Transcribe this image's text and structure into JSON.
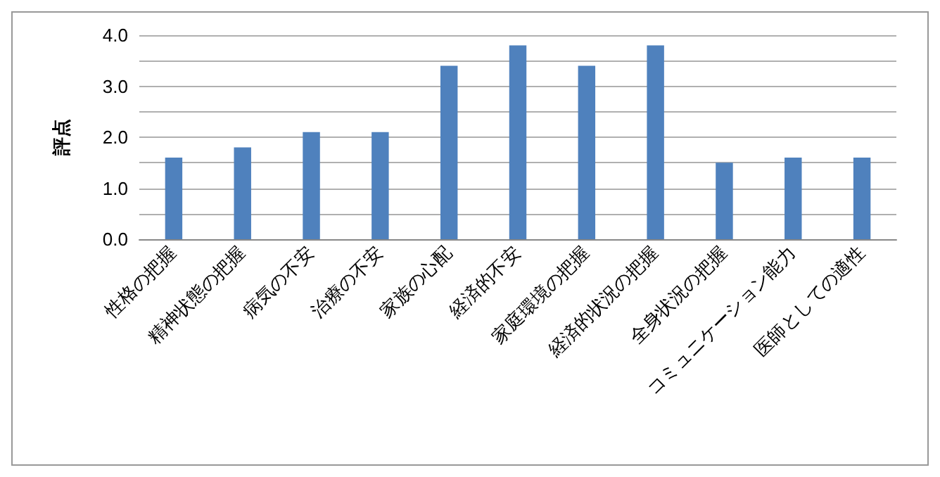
{
  "chart_data": {
    "type": "bar",
    "ylabel": "評点",
    "categories": [
      "性格の把握",
      "精神状態の把握",
      "病気の不安",
      "治療の不安",
      "家族の心配",
      "経済的不安",
      "家庭環境の把握",
      "経済的状況の把握",
      "全身状況の把握",
      "コミュニケーション能力",
      "医師としての適性"
    ],
    "values": [
      1.6,
      1.8,
      2.1,
      2.1,
      3.4,
      3.8,
      3.4,
      3.8,
      1.5,
      1.6,
      1.6
    ],
    "color": "#4f81bd",
    "ylim": [
      0,
      4
    ],
    "yticks": [
      {
        "value": 0,
        "label": "0.0"
      },
      {
        "value": 0.5,
        "label": null
      },
      {
        "value": 1,
        "label": "1.0"
      },
      {
        "value": 1.5,
        "label": null
      },
      {
        "value": 2,
        "label": "2.0"
      },
      {
        "value": 2.5,
        "label": null
      },
      {
        "value": 3,
        "label": "3.0"
      },
      {
        "value": 3.5,
        "label": null
      },
      {
        "value": 4,
        "label": "4.0"
      }
    ],
    "grid": true
  }
}
